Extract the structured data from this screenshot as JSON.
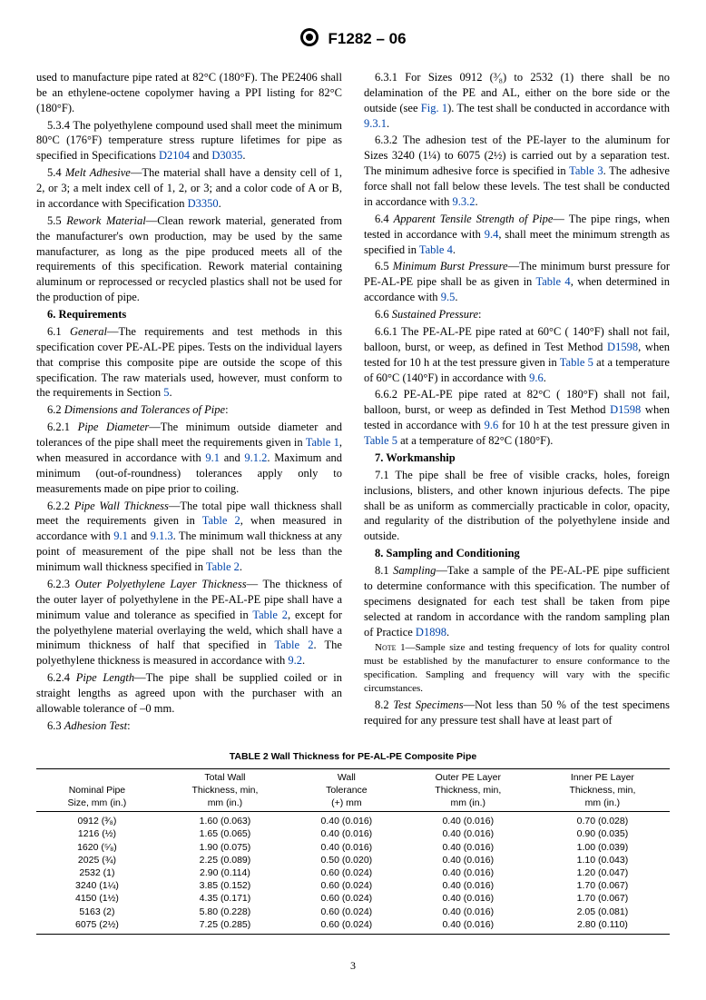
{
  "header": {
    "standard": "F1282 – 06"
  },
  "col_left": {
    "p0": "used to manufacture pipe rated at 82°C (180°F). The PE2406 shall be an ethylene-octene copolymer having a PPI listing for 82°C (180°F).",
    "p1a": "5.3.4 The polyethylene compound used shall meet the minimum 80°C (176°F) temperature stress rupture lifetimes for pipe as specified in Specifications ",
    "p1_ref1": "D2104",
    "p1b": " and ",
    "p1_ref2": "D3035",
    "p1c": ".",
    "p2a": "5.4 ",
    "p2_ital": "Melt Adhesive",
    "p2b": "—The material shall have a density cell of 1, 2, or 3; a melt index cell of 1, 2, or 3; and a color code of A or B, in accordance with Specification ",
    "p2_ref": "D3350",
    "p2c": ".",
    "p3a": "5.5 ",
    "p3_ital": "Rework Material",
    "p3b": "—Clean rework material, generated from the manufacturer's own production, may be used by the same manufacturer, as long as the pipe produced meets all of the requirements of this specification. Rework material containing aluminum or reprocessed or recycled plastics shall not be used for the production of pipe.",
    "h6": "6. Requirements",
    "p4a": "6.1 ",
    "p4_ital": "General",
    "p4b": "—The requirements and test methods in this specification cover PE-AL-PE pipes. Tests on the individual layers that comprise this composite pipe are outside the scope of this specification. The raw materials used, however, must conform to the requirements in Section ",
    "p4_ref": "5",
    "p4c": ".",
    "p5a": "6.2 ",
    "p5_ital": "Dimensions and Tolerances of Pipe",
    "p5b": ":",
    "p6a": "6.2.1 ",
    "p6_ital": "Pipe Diameter",
    "p6b": "—The minimum outside diameter and tolerances of the pipe shall meet the requirements given in ",
    "p6_ref1": "Table 1",
    "p6c": ", when measured in accordance with ",
    "p6_ref2": "9.1",
    "p6d": " and ",
    "p6_ref3": "9.1.2",
    "p6e": ". Maximum and minimum (out-of-roundness) tolerances apply only to measurements made on pipe prior to coiling.",
    "p7a": "6.2.2 ",
    "p7_ital": "Pipe Wall Thickness",
    "p7b": "—The total pipe wall thickness shall meet the requirements given in ",
    "p7_ref1": "Table 2",
    "p7c": ", when measured in accordance with ",
    "p7_ref2": "9.1",
    "p7d": " and ",
    "p7_ref3": "9.1.3",
    "p7e": ". The minimum wall thickness at any point of measurement of the pipe shall not be less than the minimum wall thickness specified in ",
    "p7_ref4": "Table 2",
    "p7f": ".",
    "p8a": "6.2.3 ",
    "p8_ital": "Outer Polyethylene Layer Thickness",
    "p8b": "— The thickness of the outer layer of polyethylene in the PE-AL-PE pipe shall have a minimum value and tolerance as specified in ",
    "p8_ref1": "Table 2",
    "p8c": ", except for the polyethylene material overlaying the weld, which shall have a minimum thickness of half that specified in ",
    "p8_ref2": "Table 2",
    "p8d": ". The polyethylene thickness is measured in accordance with ",
    "p8_ref3": "9.2",
    "p8e": ".",
    "p9a": "6.2.4 ",
    "p9_ital": "Pipe Length",
    "p9b": "—The pipe shall be supplied coiled or in straight lengths as agreed upon with the purchaser with an allowable tolerance of –0 mm.",
    "p10a": "6.3 ",
    "p10_ital": "Adhesion Test",
    "p10b": ":"
  },
  "col_right": {
    "p0a": "6.3.1 For Sizes 0912 (³⁄₈) to 2532 (1) there shall be no delamination of the PE and AL, either on the bore side or the outside (see ",
    "p0_ref1": "Fig. 1",
    "p0b": "). The test shall be conducted in accordance with ",
    "p0_ref2": "9.3.1",
    "p0c": ".",
    "p1a": "6.3.2 The adhesion test of the PE-layer to the aluminum for Sizes 3240 (1¼) to 6075 (2½) is carried out by a separation test. The minimum adhesive force is specified in ",
    "p1_ref1": "Table 3",
    "p1b": ". The adhesive force shall not fall below these levels. The test shall be conducted in accordance with ",
    "p1_ref2": "9.3.2",
    "p1c": ".",
    "p2a": "6.4 ",
    "p2_ital": "Apparent Tensile Strength of Pipe",
    "p2b": "— The pipe rings, when tested in accordance with ",
    "p2_ref1": "9.4",
    "p2c": ", shall meet the minimum strength as specified in ",
    "p2_ref2": "Table 4",
    "p2d": ".",
    "p3a": "6.5 ",
    "p3_ital": "Minimum Burst Pressure",
    "p3b": "—The minimum burst pressure for PE-AL-PE pipe shall be as given in ",
    "p3_ref1": "Table 4",
    "p3c": ", when determined in accordance with ",
    "p3_ref2": "9.5",
    "p3d": ".",
    "p4a": "6.6 ",
    "p4_ital": "Sustained Pressure",
    "p4b": ":",
    "p5a": "6.6.1 The PE-AL-PE pipe rated at 60°C ( 140°F) shall not fail, balloon, burst, or weep, as defined in Test Method ",
    "p5_ref1": "D1598",
    "p5b": ", when tested for 10 h at the test pressure given in ",
    "p5_ref2": "Table 5",
    "p5c": " at a temperature of 60°C (140°F) in accordance with ",
    "p5_ref3": "9.6",
    "p5d": ".",
    "p6a": "6.6.2 PE-AL-PE pipe rated at 82°C ( 180°F) shall not fail, balloon, burst, or weep as definded in Test Method ",
    "p6_ref1": "D1598",
    "p6b": " when tested in accordance with ",
    "p6_ref2": "9.6",
    "p6c": " for 10 h at the test pressure given in ",
    "p6_ref3": "Table 5",
    "p6d": " at a temperature of 82°C (180°F).",
    "h7": "7. Workmanship",
    "p7": "7.1 The pipe shall be free of visible cracks, holes, foreign inclusions, blisters, and other known injurious defects. The pipe shall be as uniform as commercially practicable in color, opacity, and regularity of the distribution of the polyethylene inside and outside.",
    "h8": "8. Sampling and Conditioning",
    "p8a": "8.1 ",
    "p8_ital": "Sampling",
    "p8b": "—Take a sample of the PE-AL-PE pipe sufficient to determine conformance with this specification. The number of specimens designated for each test shall be taken from pipe selected at random in accordance with the random sampling plan of Practice ",
    "p8_ref": "D1898",
    "p8c": ".",
    "note_lead": "Note",
    "note": " 1—Sample size and testing frequency of lots for quality control must be established by the manufacturer to ensure conformance to the specification. Sampling and frequency will vary with the specific circumstances.",
    "p9a": "8.2 ",
    "p9_ital": "Test Specimens",
    "p9b": "—Not less than 50 % of the test specimens required for any pressure test shall have at least part of"
  },
  "table2": {
    "caption": "TABLE 2  Wall Thickness for PE-AL-PE Composite Pipe",
    "headers": {
      "c1a": "Nominal Pipe",
      "c1b": "Size, mm (in.)",
      "c2a": "Total Wall",
      "c2b": "Thickness, min,",
      "c2c": "mm (in.)",
      "c3a": "Wall",
      "c3b": "Tolerance",
      "c3c": "(+) mm",
      "c4a": "Outer PE Layer",
      "c4b": "Thickness, min,",
      "c4c": "mm (in.)",
      "c5a": "Inner PE Layer",
      "c5b": "Thickness, min,",
      "c5c": "mm (in.)"
    },
    "rows": [
      {
        "c1": "0912 (³⁄₈)",
        "c2": "1.60 (0.063)",
        "c3": "0.40 (0.016)",
        "c4": "0.40 (0.016)",
        "c5": "0.70 (0.028)"
      },
      {
        "c1": "1216 (½)",
        "c2": "1.65 (0.065)",
        "c3": "0.40 (0.016)",
        "c4": "0.40 (0.016)",
        "c5": "0.90 (0.035)"
      },
      {
        "c1": "1620 (⁵⁄₈)",
        "c2": "1.90 (0.075)",
        "c3": "0.40 (0.016)",
        "c4": "0.40 (0.016)",
        "c5": "1.00 (0.039)"
      },
      {
        "c1": "2025 (¾)",
        "c2": "2.25 (0.089)",
        "c3": "0.50 (0.020)",
        "c4": "0.40 (0.016)",
        "c5": "1.10 (0.043)"
      },
      {
        "c1": "2532 (1)",
        "c2": "2.90 (0.114)",
        "c3": "0.60 (0.024)",
        "c4": "0.40 (0.016)",
        "c5": "1.20 (0.047)"
      },
      {
        "c1": "3240 (1¼)",
        "c2": "3.85 (0.152)",
        "c3": "0.60 (0.024)",
        "c4": "0.40 (0.016)",
        "c5": "1.70 (0.067)"
      },
      {
        "c1": "4150 (1½)",
        "c2": "4.35 (0.171)",
        "c3": "0.60 (0.024)",
        "c4": "0.40 (0.016)",
        "c5": "1.70 (0.067)"
      },
      {
        "c1": "5163 (2)",
        "c2": "5.80 (0.228)",
        "c3": "0.60 (0.024)",
        "c4": "0.40 (0.016)",
        "c5": "2.05 (0.081)"
      },
      {
        "c1": "6075 (2½)",
        "c2": "7.25 (0.285)",
        "c3": "0.60 (0.024)",
        "c4": "0.40 (0.016)",
        "c5": "2.80 (0.110)"
      }
    ]
  },
  "page_number": "3",
  "colors": {
    "link": "#0044aa",
    "text": "#000000",
    "bg": "#ffffff"
  }
}
